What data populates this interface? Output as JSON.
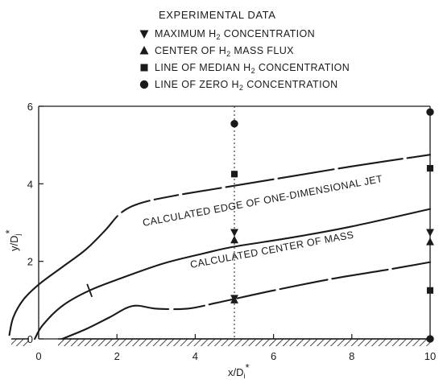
{
  "chart_data": {
    "type": "scatter",
    "title": "",
    "xlabel": "x/D",
    "xlabel_sub": "i",
    "xlabel_sup": "*",
    "ylabel": "y/D",
    "ylabel_sub": "j",
    "ylabel_sup": "*",
    "xlim": [
      0,
      10
    ],
    "ylim": [
      0,
      6
    ],
    "x_ticks": [
      0,
      2,
      4,
      6,
      8,
      10
    ],
    "y_ticks": [
      0,
      2,
      4,
      6
    ],
    "grid": false,
    "legend": {
      "title": "EXPERIMENTAL DATA",
      "placement": "top",
      "entries": [
        {
          "marker": "triangle-down",
          "label_pre": "MAXIMUM H",
          "label_sub": "2",
          "label_post": " CONCENTRATION"
        },
        {
          "marker": "triangle-up",
          "label_pre": "CENTER OF H",
          "label_sub": "2",
          "label_post": " MASS FLUX"
        },
        {
          "marker": "square",
          "label_pre": "LINE OF MEDIAN H",
          "label_sub": "2",
          "label_post": " CONCENTRATION"
        },
        {
          "marker": "circle",
          "label_pre": "LINE OF ZERO H",
          "label_sub": "2",
          "label_post": " CONCENTRATION"
        }
      ]
    },
    "series": [
      {
        "name": "MAXIMUM H2 CONCENTRATION",
        "marker": "triangle-down",
        "points": [
          [
            5,
            2.75
          ],
          [
            10,
            2.75
          ],
          [
            5,
            1.05
          ]
        ]
      },
      {
        "name": "CENTER OF H2 MASS FLUX",
        "marker": "triangle-up",
        "points": [
          [
            5,
            2.55
          ],
          [
            10,
            2.5
          ],
          [
            5,
            1.0
          ]
        ]
      },
      {
        "name": "LINE OF MEDIAN H2 CONCENTRATION",
        "marker": "square",
        "points": [
          [
            5,
            4.25
          ],
          [
            10,
            4.4
          ],
          [
            10,
            1.25
          ]
        ]
      },
      {
        "name": "LINE OF ZERO H2 CONCENTRATION",
        "marker": "circle",
        "points": [
          [
            5,
            5.55
          ],
          [
            10,
            5.85
          ],
          [
            10,
            0.0
          ]
        ]
      }
    ],
    "curves": [
      {
        "label": "CALCULATED EDGE OF ONE-DIMENSIONAL JET",
        "style": "solid-then-dashed",
        "points": [
          [
            -0.75,
            0.1
          ],
          [
            -0.65,
            0.55
          ],
          [
            -0.4,
            1.0
          ],
          [
            0.0,
            1.4
          ],
          [
            0.6,
            1.85
          ],
          [
            1.2,
            2.3
          ],
          [
            1.7,
            2.8
          ],
          [
            2.1,
            3.25
          ],
          [
            2.6,
            3.5
          ],
          [
            3.5,
            3.7
          ],
          [
            5.0,
            3.95
          ],
          [
            6.5,
            4.2
          ],
          [
            8.0,
            4.45
          ],
          [
            10.0,
            4.75
          ]
        ]
      },
      {
        "label": "CALCULATED CENTER OF MASS",
        "style": "solid",
        "points": [
          [
            -0.1,
            0.0
          ],
          [
            0.1,
            0.35
          ],
          [
            0.6,
            0.85
          ],
          [
            1.3,
            1.25
          ],
          [
            2.2,
            1.6
          ],
          [
            3.2,
            1.95
          ],
          [
            4.2,
            2.2
          ],
          [
            5.0,
            2.38
          ],
          [
            6.5,
            2.62
          ],
          [
            8.0,
            2.9
          ],
          [
            10.0,
            3.35
          ]
        ]
      },
      {
        "label": "",
        "style": "solid-then-dashed",
        "points": [
          [
            0.6,
            0.0
          ],
          [
            1.2,
            0.25
          ],
          [
            1.8,
            0.55
          ],
          [
            2.4,
            0.85
          ],
          [
            3.0,
            0.78
          ],
          [
            3.8,
            0.78
          ],
          [
            4.5,
            0.92
          ],
          [
            5.0,
            1.03
          ],
          [
            6.0,
            1.25
          ],
          [
            7.5,
            1.55
          ],
          [
            9.0,
            1.8
          ],
          [
            10.0,
            1.98
          ]
        ]
      }
    ]
  }
}
